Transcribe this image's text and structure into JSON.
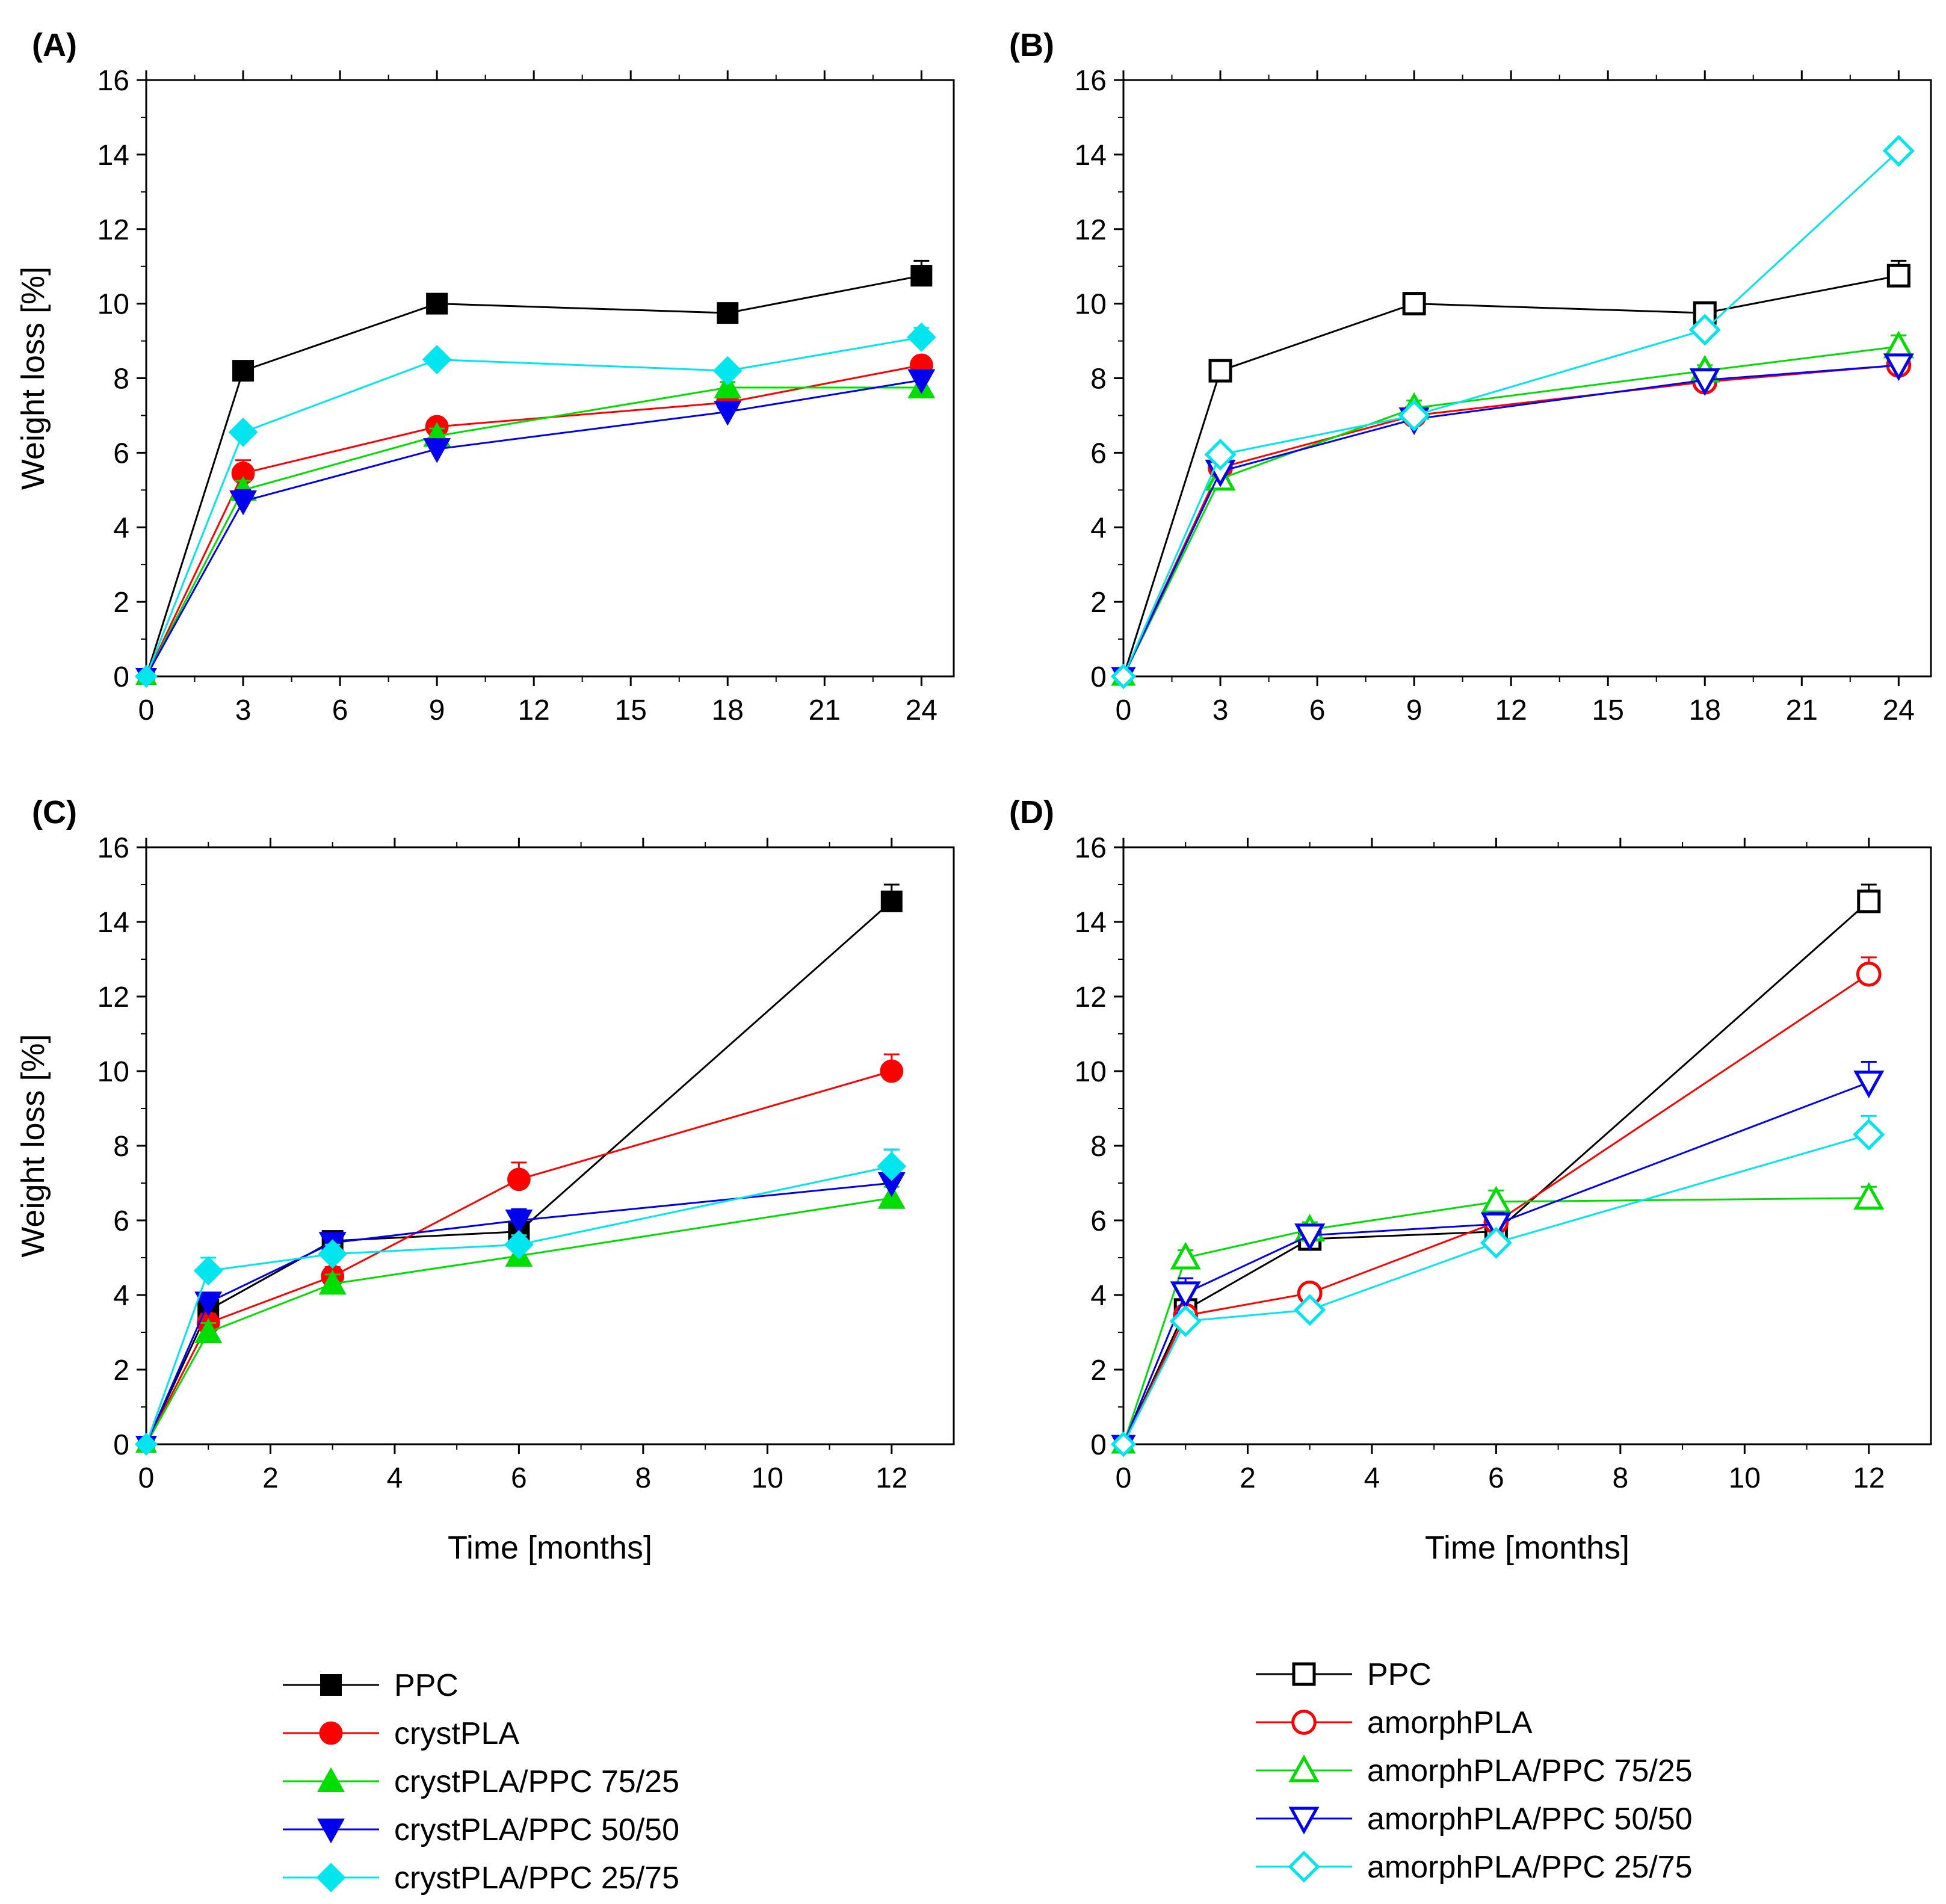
{
  "chart_data": [
    {
      "panel_label": "(A)",
      "type": "line",
      "marker_style": "filled",
      "xlabel": "",
      "ylabel": "Weight loss [%]",
      "xlim": [
        0,
        25
      ],
      "ylim": [
        0,
        16
      ],
      "xticks": [
        0,
        3,
        6,
        9,
        12,
        15,
        18,
        21,
        24
      ],
      "yticks": [
        0,
        2,
        4,
        6,
        8,
        10,
        12,
        14,
        16
      ],
      "x": [
        0,
        3,
        9,
        18,
        24
      ],
      "series": [
        {
          "name": "PPC",
          "color": "#000000",
          "marker": "square",
          "values": [
            0,
            8.2,
            10.0,
            9.75,
            10.75
          ],
          "errors": [
            0,
            0.15,
            0.15,
            0.15,
            0.4
          ]
        },
        {
          "name": "crystPLA",
          "color": "#ff0000",
          "marker": "circle",
          "values": [
            0,
            5.45,
            6.7,
            7.35,
            8.35
          ],
          "errors": [
            0,
            0.35,
            0.2,
            0.15,
            0.2
          ]
        },
        {
          "name": "crystPLA/PPC 75/25",
          "color": "#00dd00",
          "marker": "triangle-up",
          "values": [
            0,
            5.0,
            6.45,
            7.75,
            7.75
          ],
          "errors": [
            0,
            0.25,
            0.2,
            0.15,
            0.2
          ]
        },
        {
          "name": "crystPLA/PPC 50/50",
          "color": "#0000ee",
          "marker": "triangle-down",
          "values": [
            0,
            4.7,
            6.1,
            7.1,
            7.95
          ],
          "errors": [
            0,
            0.3,
            0.2,
            0.2,
            0.2
          ]
        },
        {
          "name": "crystPLA/PPC 25/75",
          "color": "#00e5ee",
          "marker": "diamond",
          "values": [
            0,
            6.55,
            8.5,
            8.2,
            9.1
          ],
          "errors": [
            0,
            0.15,
            0.15,
            0.15,
            0.25
          ]
        }
      ]
    },
    {
      "panel_label": "(B)",
      "type": "line",
      "marker_style": "open",
      "xlabel": "",
      "ylabel": "",
      "xlim": [
        0,
        25
      ],
      "ylim": [
        0,
        16
      ],
      "xticks": [
        0,
        3,
        6,
        9,
        12,
        15,
        18,
        21,
        24
      ],
      "yticks": [
        0,
        2,
        4,
        6,
        8,
        10,
        12,
        14,
        16
      ],
      "x": [
        0,
        3,
        9,
        18,
        24
      ],
      "series": [
        {
          "name": "PPC",
          "color": "#000000",
          "marker": "square",
          "values": [
            0,
            8.2,
            10.0,
            9.75,
            10.75
          ],
          "errors": [
            0,
            0.2,
            0.15,
            0.2,
            0.4
          ]
        },
        {
          "name": "amorphPLA",
          "color": "#ff0000",
          "marker": "circle",
          "values": [
            0,
            5.6,
            7.0,
            7.9,
            8.35
          ],
          "errors": [
            0,
            0.2,
            0.2,
            0.15,
            0.2
          ]
        },
        {
          "name": "amorphPLA/PPC 75/25",
          "color": "#00dd00",
          "marker": "triangle-up",
          "values": [
            0,
            5.3,
            7.2,
            8.2,
            8.85
          ],
          "errors": [
            0,
            0.2,
            0.2,
            0.15,
            0.3
          ]
        },
        {
          "name": "amorphPLA/PPC 50/50",
          "color": "#0000ee",
          "marker": "triangle-down",
          "values": [
            0,
            5.5,
            6.9,
            7.95,
            8.35
          ],
          "errors": [
            0,
            0.2,
            0.2,
            0.15,
            0.2
          ]
        },
        {
          "name": "amorphPLA/PPC 25/75",
          "color": "#00e5ee",
          "marker": "diamond",
          "values": [
            0,
            5.95,
            7.0,
            9.3,
            14.1
          ],
          "errors": [
            0,
            0.2,
            0.2,
            0.2,
            0.2
          ]
        }
      ]
    },
    {
      "panel_label": "(C)",
      "type": "line",
      "marker_style": "filled",
      "xlabel": "Time [months]",
      "ylabel": "Weight loss [%]",
      "xlim": [
        0,
        13
      ],
      "ylim": [
        0,
        16
      ],
      "xticks": [
        0,
        2,
        4,
        6,
        8,
        10,
        12
      ],
      "yticks": [
        0,
        2,
        4,
        6,
        8,
        10,
        12,
        14,
        16
      ],
      "x": [
        0,
        1,
        3,
        6,
        12
      ],
      "series": [
        {
          "name": "PPC",
          "color": "#000000",
          "marker": "square",
          "values": [
            0,
            3.6,
            5.45,
            5.7,
            14.55
          ],
          "errors": [
            0,
            0.25,
            0.2,
            0.3,
            0.45
          ]
        },
        {
          "name": "crystPLA",
          "color": "#ff0000",
          "marker": "circle",
          "values": [
            0,
            3.25,
            4.5,
            7.1,
            10.0
          ],
          "errors": [
            0,
            0.25,
            0.25,
            0.45,
            0.45
          ]
        },
        {
          "name": "crystPLA/PPC 75/25",
          "color": "#00dd00",
          "marker": "triangle-up",
          "values": [
            0,
            3.0,
            4.3,
            5.05,
            6.6
          ],
          "errors": [
            0,
            0.25,
            0.25,
            0.25,
            0.3
          ]
        },
        {
          "name": "crystPLA/PPC 50/50",
          "color": "#0000ee",
          "marker": "triangle-down",
          "values": [
            0,
            3.8,
            5.4,
            6.0,
            7.0
          ],
          "errors": [
            0,
            0.25,
            0.25,
            0.3,
            0.9
          ]
        },
        {
          "name": "crystPLA/PPC 25/75",
          "color": "#00e5ee",
          "marker": "diamond",
          "values": [
            0,
            4.65,
            5.1,
            5.35,
            7.45
          ],
          "errors": [
            0,
            0.35,
            0.25,
            0.25,
            0.45
          ]
        }
      ]
    },
    {
      "panel_label": "(D)",
      "type": "line",
      "marker_style": "open",
      "xlabel": "Time [months]",
      "ylabel": "",
      "xlim": [
        0,
        13
      ],
      "ylim": [
        0,
        16
      ],
      "xticks": [
        0,
        2,
        4,
        6,
        8,
        10,
        12
      ],
      "yticks": [
        0,
        2,
        4,
        6,
        8,
        10,
        12,
        14,
        16
      ],
      "x": [
        0,
        1,
        3,
        6,
        12
      ],
      "series": [
        {
          "name": "PPC",
          "color": "#000000",
          "marker": "square",
          "values": [
            0,
            3.6,
            5.5,
            5.7,
            14.55
          ],
          "errors": [
            0,
            0.25,
            0.2,
            0.3,
            0.45
          ]
        },
        {
          "name": "amorphPLA",
          "color": "#ff0000",
          "marker": "circle",
          "values": [
            0,
            3.45,
            4.05,
            5.95,
            12.6
          ],
          "errors": [
            0,
            0.25,
            0.25,
            0.3,
            0.45
          ]
        },
        {
          "name": "amorphPLA/PPC 75/25",
          "color": "#00dd00",
          "marker": "triangle-up",
          "values": [
            0,
            5.0,
            5.75,
            6.5,
            6.6
          ],
          "errors": [
            0,
            0.2,
            0.2,
            0.3,
            0.3
          ]
        },
        {
          "name": "amorphPLA/PPC 50/50",
          "color": "#0000ee",
          "marker": "triangle-down",
          "values": [
            0,
            4.05,
            5.6,
            5.9,
            9.7
          ],
          "errors": [
            0,
            0.4,
            0.2,
            0.3,
            0.55
          ]
        },
        {
          "name": "amorphPLA/PPC 25/75",
          "color": "#00e5ee",
          "marker": "diamond",
          "values": [
            0,
            3.3,
            3.6,
            5.4,
            8.3
          ],
          "errors": [
            0,
            0.25,
            0.2,
            0.25,
            0.5
          ]
        }
      ]
    }
  ],
  "legends": [
    {
      "marker_style": "filled",
      "entries": [
        {
          "label": "PPC",
          "color": "#000000",
          "marker": "square"
        },
        {
          "label": "crystPLA",
          "color": "#ff0000",
          "marker": "circle"
        },
        {
          "label": "crystPLA/PPC 75/25",
          "color": "#00dd00",
          "marker": "triangle-up"
        },
        {
          "label": "crystPLA/PPC 50/50",
          "color": "#0000ee",
          "marker": "triangle-down"
        },
        {
          "label": "crystPLA/PPC 25/75",
          "color": "#00e5ee",
          "marker": "diamond"
        }
      ]
    },
    {
      "marker_style": "open",
      "entries": [
        {
          "label": "PPC",
          "color": "#000000",
          "marker": "square"
        },
        {
          "label": "amorphPLA",
          "color": "#ff0000",
          "marker": "circle"
        },
        {
          "label": "amorphPLA/PPC 75/25",
          "color": "#00dd00",
          "marker": "triangle-up"
        },
        {
          "label": "amorphPLA/PPC 50/50",
          "color": "#0000ee",
          "marker": "triangle-down"
        },
        {
          "label": "amorphPLA/PPC 25/75",
          "color": "#00e5ee",
          "marker": "diamond"
        }
      ]
    }
  ]
}
